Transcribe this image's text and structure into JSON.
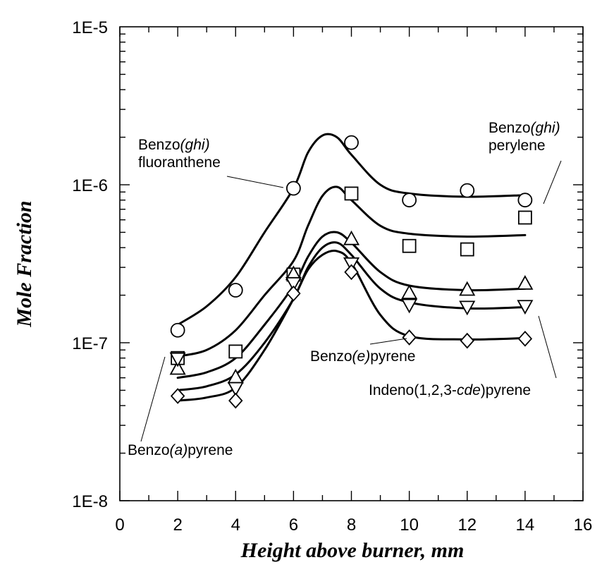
{
  "chart_data": {
    "type": "scatter",
    "xlabel": "Height above burner, mm",
    "ylabel": "Mole Fraction",
    "xlim": [
      0,
      16
    ],
    "ylim": [
      1e-08,
      1e-05
    ],
    "yscale": "log",
    "grid": false,
    "x_ticks": [
      "0",
      "2",
      "4",
      "6",
      "8",
      "10",
      "12",
      "14",
      "16"
    ],
    "y_ticks": [
      "1E-8",
      "1E-7",
      "1E-6",
      "1E-5"
    ],
    "x_tick_values": [
      0,
      2,
      4,
      6,
      8,
      10,
      12,
      14,
      16
    ],
    "y_tick_values": [
      1e-08,
      1e-07,
      1e-06,
      1e-05
    ],
    "series": [
      {
        "marker": "circle",
        "x": [
          2,
          4,
          6,
          8,
          10,
          12,
          14
        ],
        "y": [
          1.2e-07,
          2.15e-07,
          9.5e-07,
          1.85e-06,
          8e-07,
          9.2e-07,
          8e-07
        ],
        "fit_x": [
          2,
          3,
          4,
          5,
          6,
          6.5,
          7,
          7.5,
          8,
          9,
          10,
          12,
          14
        ],
        "fit_y": [
          1.3e-07,
          1.7e-07,
          2.6e-07,
          5e-07,
          9.5e-07,
          1.6e-06,
          2.05e-06,
          2e-06,
          1.55e-06,
          1e-06,
          8.8e-07,
          8.4e-07,
          8.6e-07
        ]
      },
      {
        "marker": "square",
        "x": [
          2,
          4,
          6,
          8,
          10,
          12,
          14
        ],
        "y": [
          8e-08,
          8.8e-08,
          2.7e-07,
          8.8e-07,
          4.1e-07,
          3.9e-07,
          6.2e-07
        ],
        "fit_x": [
          2,
          3,
          4,
          5,
          6,
          6.5,
          7,
          7.5,
          8,
          9,
          10,
          12,
          14
        ],
        "fit_y": [
          8.2e-08,
          9e-08,
          1.2e-07,
          2e-07,
          3.3e-07,
          5.5e-07,
          8.5e-07,
          9.7e-07,
          8e-07,
          5.5e-07,
          4.9e-07,
          4.7e-07,
          4.8e-07
        ]
      },
      {
        "marker": "triangle-up",
        "x": [
          2,
          4,
          6,
          8,
          10,
          12,
          14
        ],
        "y": [
          6.8e-08,
          6e-08,
          2.7e-07,
          4.5e-07,
          2.05e-07,
          2.15e-07,
          2.35e-07
        ],
        "fit_x": [
          2,
          3,
          4,
          5,
          6,
          6.5,
          7,
          7.5,
          8,
          9,
          10,
          12,
          14
        ],
        "fit_y": [
          6e-08,
          6.5e-08,
          8e-08,
          1.3e-07,
          2.3e-07,
          3.5e-07,
          4.7e-07,
          5e-07,
          4.3e-07,
          2.8e-07,
          2.3e-07,
          2.15e-07,
          2.2e-07
        ]
      },
      {
        "marker": "triangle-down",
        "x": [
          2,
          4,
          6,
          8,
          10,
          12,
          14
        ],
        "y": [
          8e-08,
          5.2e-08,
          2.4e-07,
          3.2e-07,
          1.75e-07,
          1.7e-07,
          1.72e-07
        ],
        "fit_x": [
          2,
          3,
          4,
          5,
          6,
          6.5,
          7,
          7.5,
          8,
          9,
          10,
          12,
          14
        ],
        "fit_y": [
          5e-08,
          5.3e-08,
          6.3e-08,
          1e-07,
          1.9e-07,
          3e-07,
          4e-07,
          4.3e-07,
          3.6e-07,
          2.2e-07,
          1.8e-07,
          1.65e-07,
          1.68e-07
        ]
      },
      {
        "marker": "diamond",
        "x": [
          2,
          4,
          6,
          8,
          10,
          12,
          14
        ],
        "y": [
          4.6e-08,
          4.3e-08,
          2.05e-07,
          2.8e-07,
          1.08e-07,
          1.03e-07,
          1.06e-07
        ],
        "fit_x": [
          2,
          3,
          4,
          5,
          6,
          6.5,
          7,
          7.5,
          8,
          9,
          10,
          12,
          14
        ],
        "fit_y": [
          4.3e-08,
          4.5e-08,
          5.2e-08,
          9e-08,
          1.9e-07,
          2.9e-07,
          3.6e-07,
          3.8e-07,
          3.2e-07,
          1.5e-07,
          1.1e-07,
          1.05e-07,
          1.07e-07
        ]
      }
    ],
    "annotations": [
      {
        "lines": [
          [
            {
              "t": "Benzo",
              "i": false
            },
            {
              "t": "(ghi)",
              "i": true
            }
          ],
          [
            {
              "t": "fluoranthene",
              "i": false
            }
          ]
        ]
      },
      {
        "lines": [
          [
            {
              "t": "Benzo",
              "i": false
            },
            {
              "t": "(ghi)",
              "i": true
            }
          ],
          [
            {
              "t": "perylene",
              "i": false
            }
          ]
        ]
      },
      {
        "lines": [
          [
            {
              "t": "Benzo",
              "i": false
            },
            {
              "t": "(e)",
              "i": true
            },
            {
              "t": "pyrene",
              "i": false
            }
          ]
        ]
      },
      {
        "lines": [
          [
            {
              "t": "Indeno(1,2,3-",
              "i": false
            },
            {
              "t": "cde",
              "i": true
            },
            {
              "t": ")pyrene",
              "i": false
            }
          ]
        ]
      },
      {
        "lines": [
          [
            {
              "t": "Benzo",
              "i": false
            },
            {
              "t": "(a)",
              "i": true
            },
            {
              "t": "pyrene",
              "i": false
            }
          ]
        ]
      }
    ]
  }
}
